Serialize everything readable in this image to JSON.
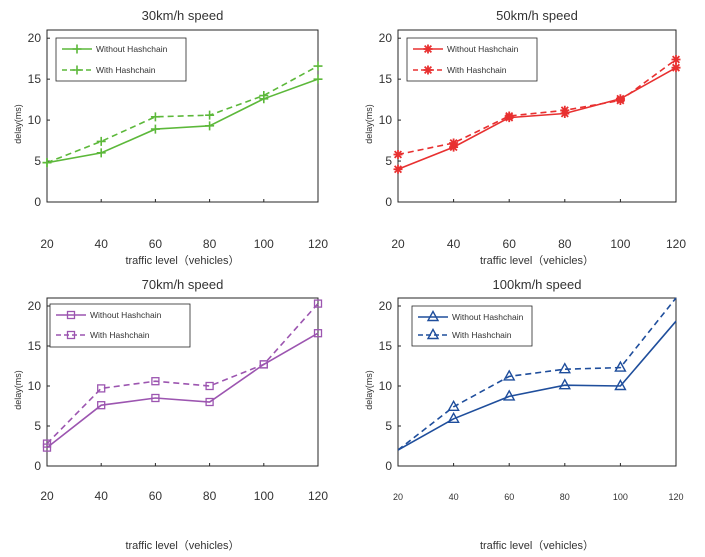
{
  "chart_data": [
    {
      "type": "line",
      "title": "30km/h speed",
      "xlabel": "traffic level（vehicles）",
      "ylabel": "delay(ms)",
      "x": [
        20,
        40,
        60,
        80,
        100,
        120
      ],
      "xticks": [
        "20",
        "40",
        "60",
        "80",
        "100",
        "120"
      ],
      "yticks": [
        "0",
        "5",
        "10",
        "15",
        "20"
      ],
      "xlim": [
        20,
        120
      ],
      "ylim": [
        0,
        21
      ],
      "color": "#5cb83a",
      "marker": "plus",
      "legend_position": "top-left",
      "series": [
        {
          "name": "Without Hashchain",
          "style": "solid",
          "values": [
            4.8,
            6.0,
            8.9,
            9.3,
            12.6,
            15.0
          ]
        },
        {
          "name": "With Hashchain",
          "style": "dashed",
          "values": [
            4.8,
            7.4,
            10.4,
            10.6,
            13.0,
            16.6
          ]
        }
      ]
    },
    {
      "type": "line",
      "title": "50km/h speed",
      "xlabel": "traffic level（vehicles）",
      "ylabel": "delay(ms)",
      "x": [
        20,
        40,
        60,
        80,
        100,
        120
      ],
      "xticks": [
        "20",
        "40",
        "60",
        "80",
        "100",
        "120"
      ],
      "yticks": [
        "0",
        "5",
        "10",
        "15",
        "20"
      ],
      "xlim": [
        20,
        120
      ],
      "ylim": [
        0,
        21
      ],
      "color": "#e83030",
      "marker": "asterisk",
      "legend_position": "top-left",
      "series": [
        {
          "name": "Without Hashchain",
          "style": "solid",
          "values": [
            4.0,
            6.7,
            10.3,
            10.8,
            12.6,
            16.4
          ]
        },
        {
          "name": "With Hashchain",
          "style": "dashed",
          "values": [
            5.8,
            7.2,
            10.5,
            11.2,
            12.4,
            17.4
          ]
        }
      ]
    },
    {
      "type": "line",
      "title": "70km/h speed",
      "xlabel": "traffic level（vehicles）",
      "ylabel": "delay(ms)",
      "x": [
        20,
        40,
        60,
        80,
        100,
        120
      ],
      "xticks": [
        "20",
        "40",
        "60",
        "80",
        "100",
        "120"
      ],
      "yticks": [
        "0",
        "5",
        "10",
        "15",
        "20"
      ],
      "xlim": [
        20,
        120
      ],
      "ylim": [
        0,
        21
      ],
      "color": "#9c55b0",
      "marker": "square",
      "legend_position": "top-left",
      "series": [
        {
          "name": "Without Hashchain",
          "style": "solid",
          "values": [
            2.3,
            7.6,
            8.5,
            8.0,
            12.7,
            16.6
          ]
        },
        {
          "name": "With Hashchain",
          "style": "dashed",
          "values": [
            2.8,
            9.7,
            10.6,
            10.0,
            12.7,
            20.3
          ]
        }
      ]
    },
    {
      "type": "line",
      "title": "100km/h speed",
      "xlabel": "traffic level（vehicles）",
      "ylabel": "delay(ms)",
      "x": [
        20,
        40,
        60,
        80,
        100,
        120
      ],
      "xticks": [
        "20",
        "40",
        "60",
        "80",
        "100",
        "120"
      ],
      "yticks": [
        "0",
        "5",
        "10",
        "15",
        "20"
      ],
      "xlim": [
        20,
        120
      ],
      "ylim": [
        0,
        21
      ],
      "color": "#1f4e9c",
      "marker": "triangle",
      "legend_position": "top-left",
      "series": [
        {
          "name": "Without Hashchain",
          "style": "solid",
          "values": [
            2.0,
            5.9,
            8.7,
            10.1,
            10.0,
            18.1
          ]
        },
        {
          "name": "With Hashchain",
          "style": "dashed",
          "values": [
            2.0,
            7.4,
            11.2,
            12.1,
            12.3,
            21.0
          ]
        }
      ]
    }
  ]
}
